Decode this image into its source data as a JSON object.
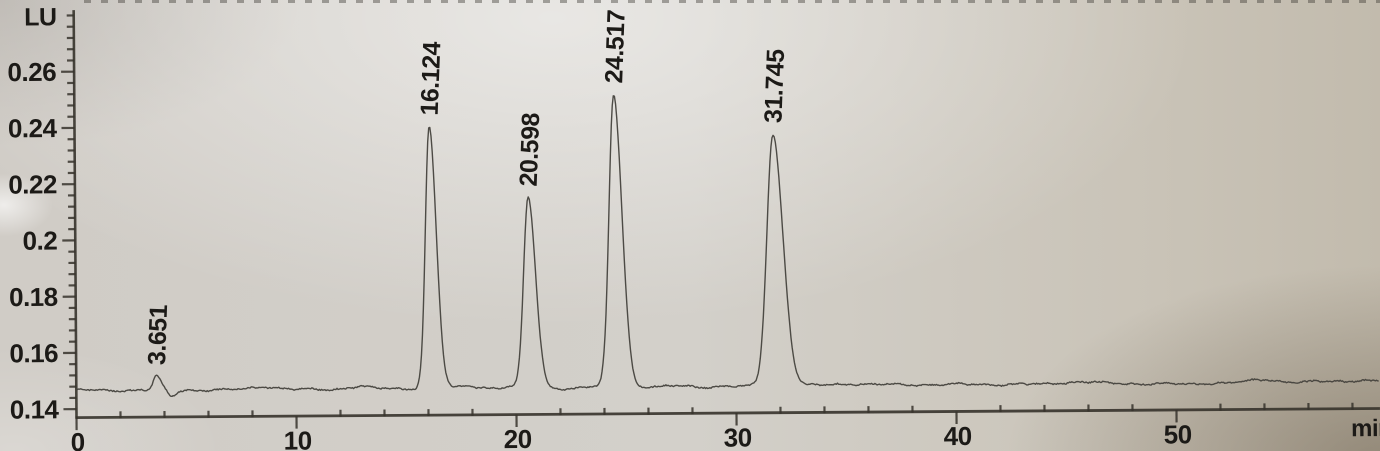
{
  "chart_data": {
    "type": "line",
    "title": "",
    "xlabel": "min",
    "ylabel": "LU",
    "x_axis": {
      "ticks_major": [
        0,
        10,
        20,
        30,
        40,
        50
      ],
      "minor_step_min": 2,
      "range_min": [
        0,
        59.2
      ]
    },
    "y_axis": {
      "tick_labels": [
        "0.14",
        "0.16",
        "0.18",
        "0.2",
        "0.22",
        "0.24",
        "0.26"
      ],
      "tick_values": [
        0.14,
        0.16,
        0.18,
        0.2,
        0.22,
        0.24,
        0.26
      ],
      "minor_step_lu": 0.004,
      "axis_top_value": 0.281,
      "grid": false
    },
    "legend_position": "none",
    "baseline_lu": 0.1465,
    "peaks": [
      {
        "rt_min": 3.651,
        "label": "3.651",
        "apex_lu": 0.1515,
        "sigma_min": 0.14
      },
      {
        "rt_min": 16.124,
        "label": "16.124",
        "apex_lu": 0.2395,
        "sigma_min": 0.21
      },
      {
        "rt_min": 20.598,
        "label": "20.598",
        "apex_lu": 0.214,
        "sigma_min": 0.23
      },
      {
        "rt_min": 24.517,
        "label": "24.517",
        "apex_lu": 0.2505,
        "sigma_min": 0.25
      },
      {
        "rt_min": 31.745,
        "label": "31.745",
        "apex_lu": 0.236,
        "sigma_min": 0.31
      }
    ],
    "baseline_features": [
      {
        "t": 4.35,
        "amp": -0.0022,
        "sigma": 0.18
      },
      {
        "t": 8.6,
        "amp": 0.0012,
        "sigma": 0.6
      },
      {
        "t": 12.8,
        "amp": 0.0009,
        "sigma": 0.5
      },
      {
        "t": 17.8,
        "amp": 0.0007,
        "sigma": 0.3
      },
      {
        "t": 22.4,
        "amp": -0.0007,
        "sigma": 0.25
      },
      {
        "t": 27.5,
        "amp": 0.0005,
        "sigma": 0.4
      },
      {
        "t": 35.0,
        "amp": 0.0005,
        "sigma": 0.6
      },
      {
        "t": 45.6,
        "amp": 0.0009,
        "sigma": 0.8
      },
      {
        "t": 50.5,
        "amp": -0.0005,
        "sigma": 0.5
      },
      {
        "t": 54.0,
        "amp": 0.0007,
        "sigma": 0.6
      },
      {
        "t": 58.5,
        "amp": 0.0006,
        "sigma": 0.5
      }
    ]
  },
  "colors": {
    "paper": "#cdc9c1",
    "ink": "#1c1a17",
    "trace": "#45423d",
    "axis": "#37332c"
  }
}
